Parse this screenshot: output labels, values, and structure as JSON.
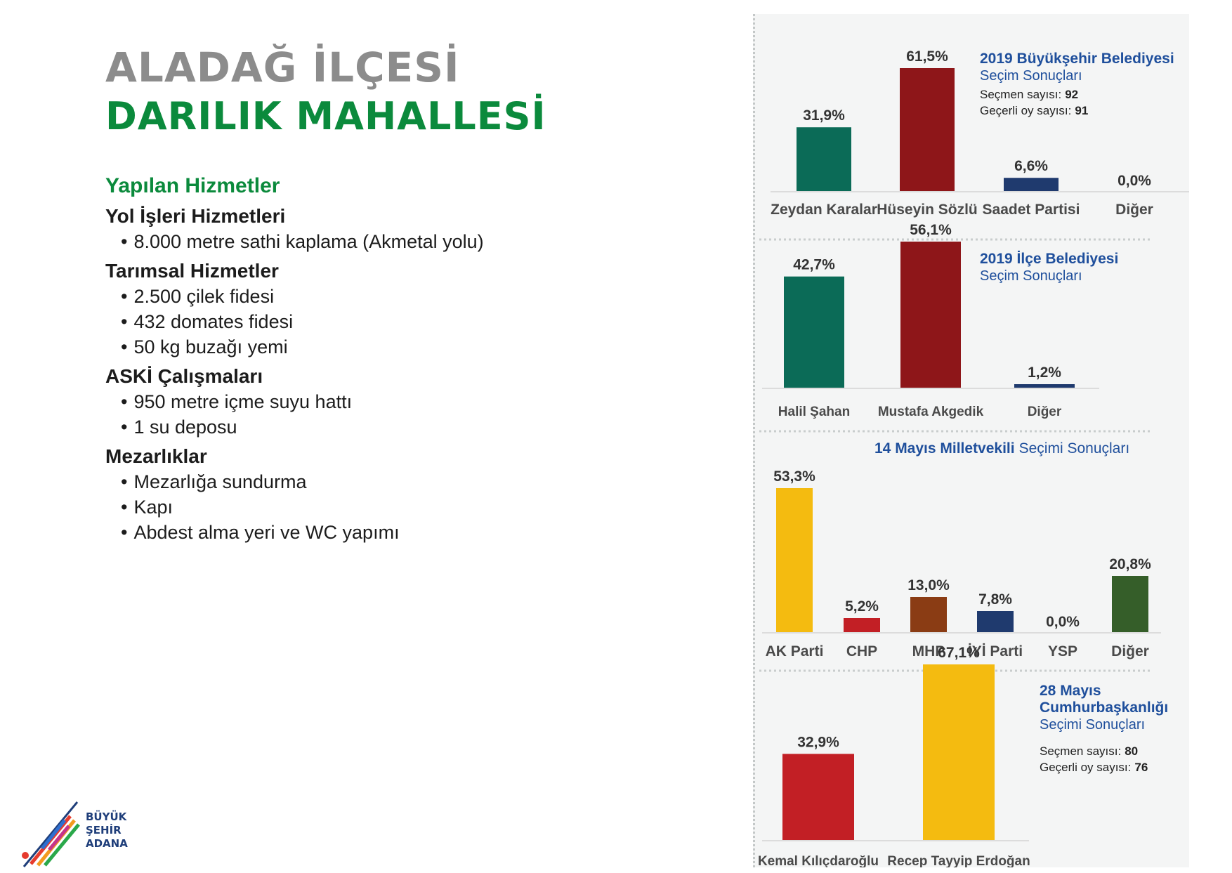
{
  "header": {
    "district": "ALADAĞ İLÇESİ",
    "neighborhood": "DARILIK MAHALLESİ"
  },
  "services": {
    "title": "Yapılan Hizmetler",
    "groups": [
      {
        "title": "Yol İşleri Hizmetleri",
        "items": [
          "8.000 metre sathi kaplama (Akmetal yolu)"
        ]
      },
      {
        "title": "Tarımsal Hizmetler",
        "items": [
          "2.500 çilek fidesi",
          "432 domates fidesi",
          "50 kg buzağı yemi"
        ]
      },
      {
        "title": "ASKİ Çalışmaları",
        "items": [
          "950 metre içme suyu hattı",
          "1 su deposu"
        ]
      },
      {
        "title": "Mezarlıklar",
        "items": [
          "Mezarlığa sundurma",
          "Kapı",
          "Abdest alma yeri ve WC yapımı"
        ]
      }
    ]
  },
  "logo": {
    "line1": "BÜYÜK",
    "line2": "ŞEHİR",
    "line3": "ADANA"
  },
  "colors": {
    "teal": "#0b6b57",
    "darkred": "#8e1619",
    "navy": "#1f3a6e",
    "yellow": "#f4bb10",
    "red": "#c21f25",
    "brown": "#8a3c14",
    "darkgreen": "#355e29",
    "titleBlue": "#1f4f9c"
  },
  "chart_data": [
    {
      "type": "bar",
      "title": "2019 Büyükşehir Belediyesi",
      "subtitle": "Seçim Sonuçları",
      "info": [
        {
          "label": "Seçmen sayısı:",
          "value": "92"
        },
        {
          "label": "Geçerli oy sayısı:",
          "value": "91"
        }
      ],
      "categories": [
        "Zeydan Karalar",
        "Hüseyin Sözlü",
        "Saadet Partisi",
        "Diğer"
      ],
      "values": [
        31.9,
        61.5,
        6.6,
        0.0
      ],
      "labels": [
        "31,9%",
        "61,5%",
        "6,6%",
        "0,0%"
      ],
      "colors": [
        "#0b6b57",
        "#8e1619",
        "#1f3a6e",
        "#1f3a6e"
      ]
    },
    {
      "type": "bar",
      "title": "2019 İlçe Belediyesi",
      "subtitle": "Seçim Sonuçları",
      "info": [],
      "categories": [
        "Halil Şahan",
        "Mustafa Akgedik",
        "Diğer"
      ],
      "values": [
        42.7,
        56.1,
        1.2
      ],
      "labels": [
        "42,7%",
        "56,1%",
        "1,2%"
      ],
      "colors": [
        "#0b6b57",
        "#8e1619",
        "#1f3a6e"
      ]
    },
    {
      "type": "bar",
      "title": "14 Mayıs Milletvekili",
      "subtitle": "Seçimi Sonuçları",
      "info": [],
      "categories": [
        "AK Parti",
        "CHP",
        "MHP",
        "İYİ Parti",
        "YSP",
        "Diğer"
      ],
      "values": [
        53.3,
        5.2,
        13.0,
        7.8,
        0.0,
        20.8
      ],
      "labels": [
        "53,3%",
        "5,2%",
        "13,0%",
        "7,8%",
        "0,0%",
        "20,8%"
      ],
      "colors": [
        "#f4bb10",
        "#c21f25",
        "#8a3c14",
        "#1f3a6e",
        "#1f3a6e",
        "#355e29"
      ]
    },
    {
      "type": "bar",
      "title": "28 Mayıs Cumhurbaşkanlığı",
      "subtitle": "Seçimi Sonuçları",
      "info": [
        {
          "label": "Seçmen sayısı:",
          "value": "80"
        },
        {
          "label": "Geçerli oy sayısı:",
          "value": "76"
        }
      ],
      "categories": [
        "Kemal Kılıçdaroğlu",
        "Recep Tayyip Erdoğan"
      ],
      "values": [
        32.9,
        67.1
      ],
      "labels": [
        "32,9%",
        "67,1%"
      ],
      "colors": [
        "#c21f25",
        "#f4bb10"
      ]
    }
  ]
}
